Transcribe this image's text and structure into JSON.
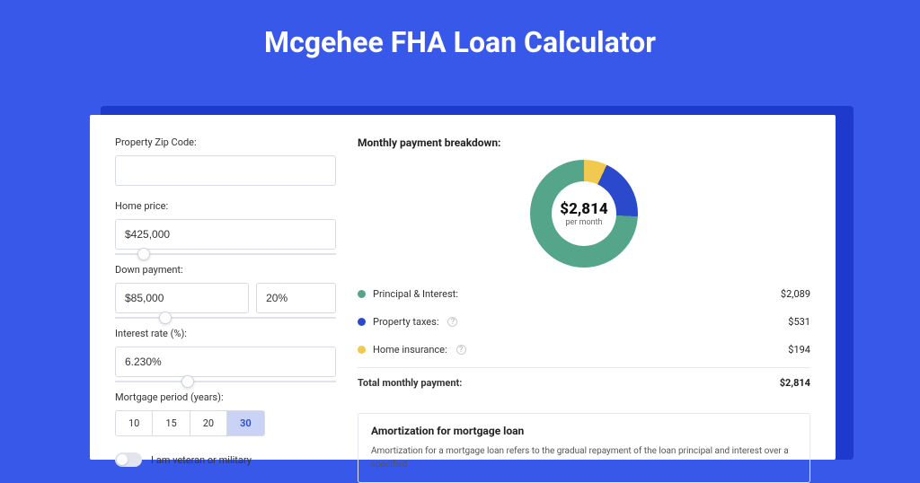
{
  "page": {
    "title": "Mcgehee FHA Loan Calculator"
  },
  "form": {
    "zip": {
      "label": "Property Zip Code:",
      "value": ""
    },
    "home_price": {
      "label": "Home price:",
      "value": "$425,000",
      "slider_pct": 10
    },
    "down_payment": {
      "label": "Down payment:",
      "value": "$85,000",
      "pct_value": "20%",
      "slider_pct": 20
    },
    "interest": {
      "label": "Interest rate (%):",
      "value": "6.230%",
      "slider_pct": 30
    },
    "period": {
      "label": "Mortgage period (years):",
      "options": [
        "10",
        "15",
        "20",
        "30"
      ],
      "active_index": 3
    },
    "veteran": {
      "label": "I am veteran or military",
      "on": false
    }
  },
  "breakdown": {
    "title": "Monthly payment breakdown:",
    "center_amount": "$2,814",
    "center_sub": "per month",
    "colors": {
      "principal": "#54a58a",
      "taxes": "#2b4acb",
      "insurance": "#f1c94e",
      "track": "#eef0f5"
    },
    "slices": {
      "principal_deg": 267,
      "taxes_deg": 68,
      "insurance_deg": 25
    },
    "rows": [
      {
        "label": "Principal & Interest:",
        "value": "$2,089",
        "color": "#54a58a",
        "info": false
      },
      {
        "label": "Property taxes:",
        "value": "$531",
        "color": "#2b4acb",
        "info": true
      },
      {
        "label": "Home insurance:",
        "value": "$194",
        "color": "#f1c94e",
        "info": true
      }
    ],
    "total": {
      "label": "Total monthly payment:",
      "value": "$2,814"
    }
  },
  "amort": {
    "title": "Amortization for mortgage loan",
    "text": "Amortization for a mortgage loan refers to the gradual repayment of the loan principal and interest over a specified"
  }
}
